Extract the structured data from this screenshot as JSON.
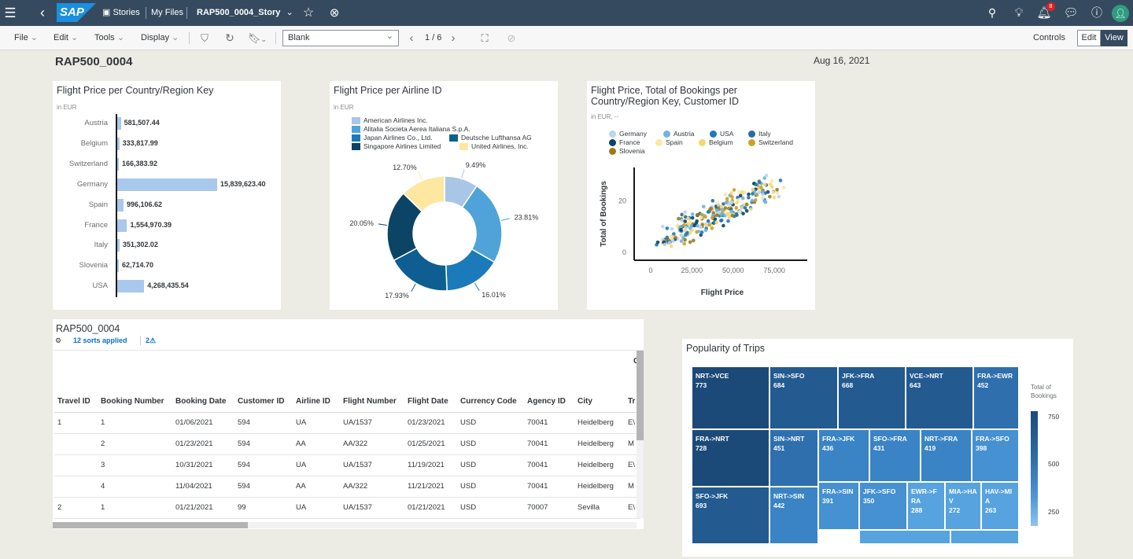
{
  "shell": {
    "logo": "SAP",
    "breadcrumb": [
      "Stories",
      "My Files"
    ],
    "story_title": "RAP500_0004_Story",
    "notification_count": "8"
  },
  "toolbar": {
    "menus": [
      "File",
      "Edit",
      "Tools",
      "Display"
    ],
    "page_select": "Blank",
    "page_indicator": "1 / 6",
    "controls_label": "Controls",
    "edit_label": "Edit",
    "view_label": "View"
  },
  "page": {
    "title": "RAP500_0004",
    "date": "Aug 16, 2021"
  },
  "bar_chart": {
    "title": "Flight Price per Country/Region Key",
    "subtitle": "in EUR",
    "chart_data": {
      "type": "bar",
      "orientation": "horizontal",
      "title": "Flight Price per Country/Region Key",
      "categories": [
        "Austria",
        "Belgium",
        "Switzerland",
        "Germany",
        "Spain",
        "France",
        "Italy",
        "Slovenia",
        "USA"
      ],
      "values": [
        581507.44,
        333817.99,
        166383.92,
        15839623.4,
        996106.62,
        1554970.39,
        351302.02,
        62714.7,
        4268435.54
      ],
      "labels": [
        "581,507.44",
        "333,817.99",
        "166,383.92",
        "15,839,623.40",
        "996,106.62",
        "1,554,970.39",
        "351,302.02",
        "62,714.70",
        "4,268,435.54"
      ],
      "color": "#a8c8ec"
    }
  },
  "donut_chart": {
    "title": "Flight Price per Airline ID",
    "subtitle": "in EUR",
    "legend": [
      {
        "name": "American Airlines Inc.",
        "color": "#a9c6e6"
      },
      {
        "name": "Alitalia Societa Aerea Italiana S.p.A.",
        "color": "#4fa3d8"
      },
      {
        "name": "Japan Airlines Co., Ltd.",
        "color": "#1b7ab9"
      },
      {
        "name": "Deutsche Lufthansa AG",
        "color": "#0f5e91"
      },
      {
        "name": "Singapore Airlines Limited",
        "color": "#0c4466"
      },
      {
        "name": "United Airlines, Inc.",
        "color": "#fde7a1"
      }
    ],
    "chart_data": {
      "type": "pie",
      "variant": "donut",
      "title": "Flight Price per Airline ID",
      "values": [
        9.49,
        23.81,
        16.01,
        17.93,
        20.05,
        12.7
      ],
      "labels": [
        "9.49%",
        "23.81%",
        "16.01%",
        "17.93%",
        "20.05%",
        "12.70%"
      ],
      "colors": [
        "#a9c6e6",
        "#4fa3d8",
        "#1b7ab9",
        "#0f5e91",
        "#0c4466",
        "#fde7a1"
      ]
    }
  },
  "scatter_chart": {
    "title_line1": "Flight Price, Total of Bookings per",
    "title_line2": "Country/Region Key, Customer ID",
    "subtitle": "in EUR, --",
    "legend": [
      {
        "name": "Germany",
        "color": "#b8d5ee"
      },
      {
        "name": "Austria",
        "color": "#6fb3e0"
      },
      {
        "name": "USA",
        "color": "#1b7ab9"
      },
      {
        "name": "Italy",
        "color": "#2a6a9c"
      },
      {
        "name": "France",
        "color": "#0c4466"
      },
      {
        "name": "Spain",
        "color": "#fde7a1"
      },
      {
        "name": "Belgium",
        "color": "#f5d76e"
      },
      {
        "name": "Switzerland",
        "color": "#c9a227"
      },
      {
        "name": "Slovenia",
        "color": "#9c7a1c"
      }
    ],
    "chart_data": {
      "type": "scatter",
      "xlabel": "Flight Price",
      "ylabel": "Total of Bookings",
      "x_ticks": [
        "0",
        "25,000",
        "50,000",
        "75,000"
      ],
      "y_ticks": [
        "0",
        "20"
      ],
      "xlim": [
        -10000,
        95000
      ],
      "ylim": [
        -3,
        33
      ],
      "trend": {
        "x_range": [
          8000,
          75000
        ],
        "y_range": [
          5,
          26
        ]
      }
    }
  },
  "table": {
    "title": "RAP500_0004",
    "sorts_label": "12 sorts applied",
    "warning_count": "2",
    "group_header": "C",
    "columns": [
      "Travel ID",
      "Booking Number",
      "Booking Date",
      "Customer ID",
      "Airline ID",
      "Flight Number",
      "Flight Date",
      "Currency Code",
      "Agency ID",
      "City",
      "Tr"
    ],
    "rows": [
      [
        "1",
        "1",
        "01/06/2021",
        "594",
        "UA",
        "UA/1537",
        "01/23/2021",
        "USD",
        "70041",
        "Heidelberg",
        "E\\"
      ],
      [
        "",
        "2",
        "01/23/2021",
        "594",
        "AA",
        "AA/322",
        "01/25/2021",
        "USD",
        "70041",
        "Heidelberg",
        "M"
      ],
      [
        "",
        "3",
        "10/31/2021",
        "594",
        "UA",
        "UA/1537",
        "11/19/2021",
        "USD",
        "70041",
        "Heidelberg",
        "E\\"
      ],
      [
        "",
        "4",
        "11/04/2021",
        "594",
        "AA",
        "AA/322",
        "11/21/2021",
        "USD",
        "70041",
        "Heidelberg",
        "M"
      ],
      [
        "2",
        "1",
        "01/21/2021",
        "99",
        "UA",
        "UA/1537",
        "01/21/2021",
        "USD",
        "70007",
        "Sevilla",
        "E\\"
      ]
    ]
  },
  "treemap": {
    "title": "Popularity of Trips",
    "legend_title_line1": "Total of",
    "legend_title_line2": "Bookings",
    "legend_ticks": [
      "750",
      "500",
      "250"
    ],
    "chart_data": {
      "type": "treemap",
      "measure": "Total of Bookings",
      "items": [
        {
          "name": "NRT->VCE",
          "value": 773
        },
        {
          "name": "SIN->SFO",
          "value": 684
        },
        {
          "name": "JFK->FRA",
          "value": 668
        },
        {
          "name": "VCE->NRT",
          "value": 643
        },
        {
          "name": "FRA->EWR",
          "value": 452
        },
        {
          "name": "FRA->NRT",
          "value": 728
        },
        {
          "name": "SIN->NRT",
          "value": 451
        },
        {
          "name": "FRA->JFK",
          "value": 436
        },
        {
          "name": "SFO->FRA",
          "value": 431
        },
        {
          "name": "NRT->FRA",
          "value": 419
        },
        {
          "name": "FRA->SFO",
          "value": 398
        },
        {
          "name": "SFO->JFK",
          "value": 693
        },
        {
          "name": "NRT->SIN",
          "value": 442
        },
        {
          "name": "FRA->SIN",
          "value": 391
        },
        {
          "name": "JFK->SFO",
          "value": 350
        },
        {
          "name": "EWR->FRA",
          "value": 288
        },
        {
          "name": "MIA->HAV",
          "value": 272
        },
        {
          "name": "HAV->MIA",
          "value": 263
        }
      ]
    }
  }
}
